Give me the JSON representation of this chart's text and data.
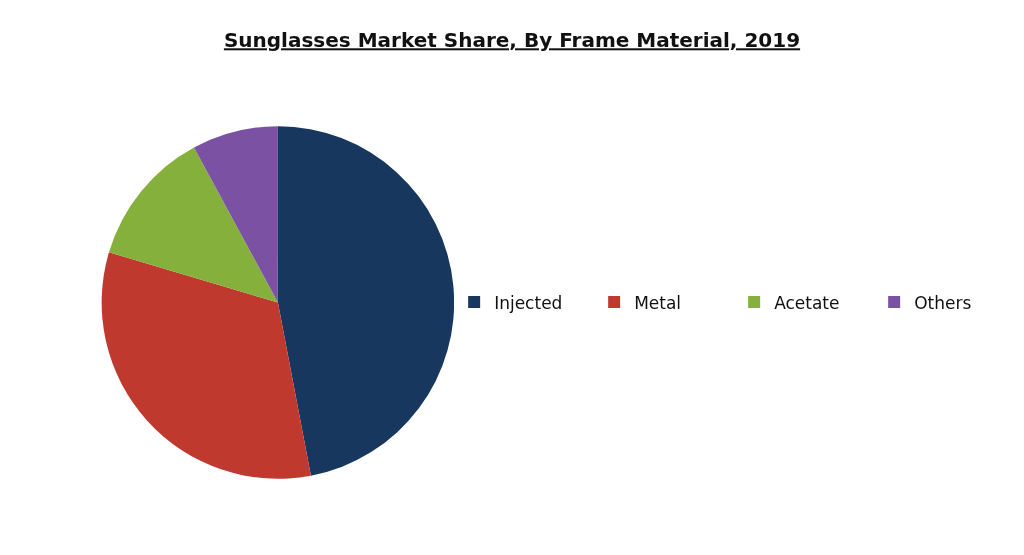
{
  "chart_data": {
    "type": "pie",
    "title": "Sunglasses Market Share, By Frame Material, 2019",
    "categories": [
      "Injected",
      "Metal",
      "Acetate",
      "Others"
    ],
    "values": [
      47,
      32.6,
      12.5,
      7.9
    ],
    "colors": [
      "#17375e",
      "#c0392f",
      "#86b03c",
      "#7b52a3"
    ],
    "legend": "right"
  }
}
